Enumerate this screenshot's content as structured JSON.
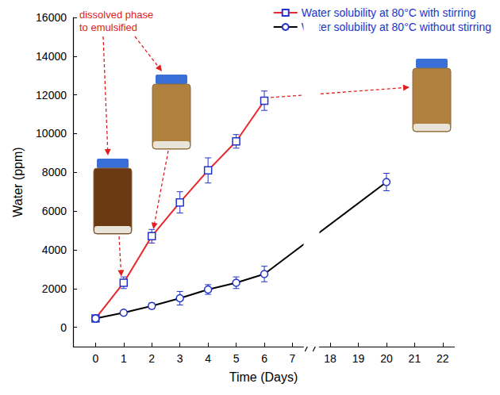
{
  "chart_data": {
    "type": "line",
    "x_label": "Time (Days)",
    "y_label": "Water (ppm)",
    "xlim": [
      -0.8,
      22.4
    ],
    "xticks": [
      0,
      1,
      2,
      3,
      4,
      5,
      6,
      7,
      18,
      19,
      20,
      21,
      22
    ],
    "ylim": [
      -1000,
      16000
    ],
    "yticks": [
      0,
      2000,
      4000,
      6000,
      8000,
      10000,
      12000,
      14000,
      16000
    ],
    "grid": false,
    "legend": "upper right",
    "annotations": [
      "dissolved phase\nto emulsified"
    ],
    "x": [
      0,
      1,
      2,
      3,
      4,
      5,
      6,
      20
    ],
    "series": [
      {
        "name": "Water solubility at 80°C with stirring",
        "color": "#e8262b",
        "marker": "square",
        "line_style": "solid",
        "values": [
          450,
          2300,
          4700,
          6450,
          8100,
          9600,
          11700,
          null
        ],
        "errors": [
          100,
          300,
          350,
          550,
          650,
          350,
          500,
          null
        ]
      },
      {
        "name": "Water solubility at 80°C without stirring",
        "color": "#000000",
        "marker": "circle",
        "line_style": "solid",
        "values": [
          450,
          750,
          1100,
          1500,
          1950,
          2300,
          2750,
          7500
        ],
        "errors": [
          100,
          100,
          150,
          350,
          250,
          300,
          400,
          450
        ]
      }
    ]
  }
}
